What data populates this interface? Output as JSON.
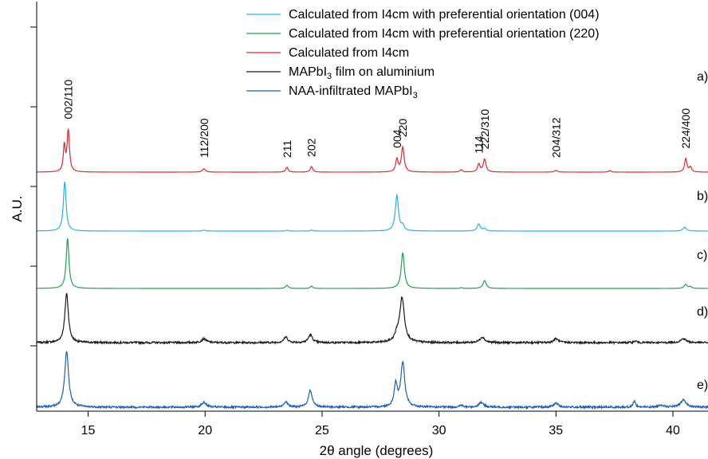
{
  "chart_data": {
    "type": "line",
    "xlabel": "2θ angle (degrees)",
    "ylabel": "A.U.",
    "xlim": [
      12.8,
      41.5
    ],
    "x_ticks": [
      15,
      20,
      25,
      30,
      35,
      40
    ],
    "y_ticks_unlabeled": 5,
    "grid": false,
    "legend_position": "top-right",
    "legend": [
      {
        "series": "b",
        "text": "Calculated from I4cm with preferential orientation (004)",
        "html": "Calculated from I4cm with preferential orientation (004)"
      },
      {
        "series": "c",
        "text": "Calculated from I4cm with preferential orientation (220)",
        "html": "Calculated from I4cm with preferential orientation (220)"
      },
      {
        "series": "a",
        "text": "Calculated from I4cm",
        "html": "Calculated from I4cm"
      },
      {
        "series": "d",
        "text": "MAPbI3 film on aluminium",
        "html": "MAPbI<tspan class='sub' dy='4'>3</tspan><tspan dy='-4'> film on aluminium</tspan>"
      },
      {
        "series": "e",
        "text": "NAA-infiltrated MAPbI3",
        "html": "NAA-infiltrated MAPbI<tspan class='sub' dy='4'>3</tspan>"
      }
    ],
    "series": [
      {
        "id": "a",
        "name": "Calculated from I4cm",
        "panel_label": "a)",
        "color": "#e0262e",
        "noise": 0,
        "peaks": [
          [
            13.98,
            0.32,
            0.05
          ],
          [
            14.15,
            0.52,
            0.06
          ],
          [
            19.95,
            0.04,
            0.08
          ],
          [
            23.5,
            0.06,
            0.06
          ],
          [
            24.55,
            0.07,
            0.06
          ],
          [
            28.2,
            0.16,
            0.06
          ],
          [
            28.45,
            0.31,
            0.07
          ],
          [
            30.95,
            0.03,
            0.06
          ],
          [
            31.7,
            0.1,
            0.06
          ],
          [
            31.95,
            0.16,
            0.07
          ],
          [
            35.0,
            0.02,
            0.08
          ],
          [
            37.3,
            0.02,
            0.06
          ],
          [
            40.55,
            0.17,
            0.06
          ],
          [
            40.75,
            0.06,
            0.06
          ]
        ]
      },
      {
        "id": "b",
        "name": "Calculated from I4cm with preferential orientation (004)",
        "panel_label": "b)",
        "color": "#27b0e2",
        "noise": 0,
        "peaks": [
          [
            14.0,
            0.62,
            0.07
          ],
          [
            19.95,
            0.012,
            0.08
          ],
          [
            23.5,
            0.012,
            0.06
          ],
          [
            24.55,
            0.014,
            0.06
          ],
          [
            28.2,
            0.45,
            0.08
          ],
          [
            28.45,
            0.06,
            0.07
          ],
          [
            31.7,
            0.09,
            0.08
          ],
          [
            31.95,
            0.03,
            0.07
          ],
          [
            40.5,
            0.05,
            0.08
          ]
        ]
      },
      {
        "id": "c",
        "name": "Calculated from I4cm with preferential orientation (220)",
        "panel_label": "c)",
        "color": "#1ea04f",
        "noise": 0,
        "peaks": [
          [
            14.12,
            0.63,
            0.07
          ],
          [
            23.5,
            0.04,
            0.07
          ],
          [
            24.55,
            0.03,
            0.06
          ],
          [
            28.45,
            0.45,
            0.08
          ],
          [
            31.95,
            0.1,
            0.08
          ],
          [
            30.95,
            0.01,
            0.06
          ],
          [
            40.55,
            0.05,
            0.08
          ],
          [
            40.75,
            0.02,
            0.07
          ]
        ]
      },
      {
        "id": "d",
        "name": "MAPbI3 film on aluminium",
        "panel_label": "d)",
        "color": "#1a1a1a",
        "noise": 0.012,
        "peaks": [
          [
            14.08,
            0.62,
            0.09
          ],
          [
            19.95,
            0.05,
            0.12
          ],
          [
            23.45,
            0.07,
            0.1
          ],
          [
            24.5,
            0.1,
            0.1
          ],
          [
            28.2,
            0.08,
            0.1
          ],
          [
            28.42,
            0.56,
            0.12
          ],
          [
            31.85,
            0.07,
            0.12
          ],
          [
            35.0,
            0.05,
            0.12
          ],
          [
            38.4,
            0.02,
            0.08
          ],
          [
            40.45,
            0.05,
            0.14
          ]
        ]
      },
      {
        "id": "e",
        "name": "NAA-infiltrated MAPbI3",
        "panel_label": "e)",
        "color": "#1f5fb0",
        "noise": 0.012,
        "peaks": [
          [
            14.08,
            0.7,
            0.1
          ],
          [
            19.95,
            0.06,
            0.12
          ],
          [
            23.45,
            0.07,
            0.1
          ],
          [
            24.5,
            0.21,
            0.1
          ],
          [
            28.15,
            0.28,
            0.08
          ],
          [
            28.45,
            0.56,
            0.1
          ],
          [
            30.95,
            0.03,
            0.06
          ],
          [
            31.8,
            0.06,
            0.12
          ],
          [
            35.0,
            0.05,
            0.12
          ],
          [
            38.35,
            0.08,
            0.06
          ],
          [
            39.5,
            0.03,
            0.12
          ],
          [
            40.45,
            0.09,
            0.14
          ]
        ]
      }
    ],
    "peak_labels": [
      {
        "text": "002/110",
        "x": 14.15
      },
      {
        "text": "112/200",
        "x": 19.95
      },
      {
        "text": "211",
        "x": 23.5
      },
      {
        "text": "202",
        "x": 24.55
      },
      {
        "text": "004",
        "x": 28.2
      },
      {
        "text": "220",
        "x": 28.45
      },
      {
        "text": "114",
        "x": 31.7
      },
      {
        "text": "222/310",
        "x": 31.95
      },
      {
        "text": "204/312",
        "x": 35.0
      },
      {
        "text": "224/400",
        "x": 40.55
      }
    ]
  }
}
